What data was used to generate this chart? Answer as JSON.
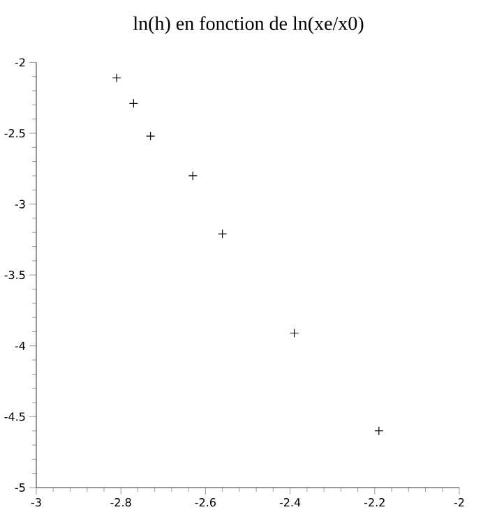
{
  "chart_data": {
    "type": "scatter",
    "title": "ln(h) en fonction de ln(xe/x0)",
    "x": [
      -2.81,
      -2.77,
      -2.73,
      -2.63,
      -2.56,
      -2.39,
      -2.19
    ],
    "values": [
      -2.11,
      -2.29,
      -2.52,
      -2.8,
      -3.21,
      -3.91,
      -4.6
    ],
    "color": "#000000",
    "marker": "cross",
    "xlim": [
      -3,
      -2
    ],
    "ylim": [
      -5,
      -2
    ],
    "xticks": [
      -3,
      -2.8,
      -2.6,
      -2.4,
      -2.2,
      -2
    ],
    "yticks": [
      -5,
      -4.5,
      -4,
      -3.5,
      -3,
      -2.5,
      -2
    ]
  }
}
